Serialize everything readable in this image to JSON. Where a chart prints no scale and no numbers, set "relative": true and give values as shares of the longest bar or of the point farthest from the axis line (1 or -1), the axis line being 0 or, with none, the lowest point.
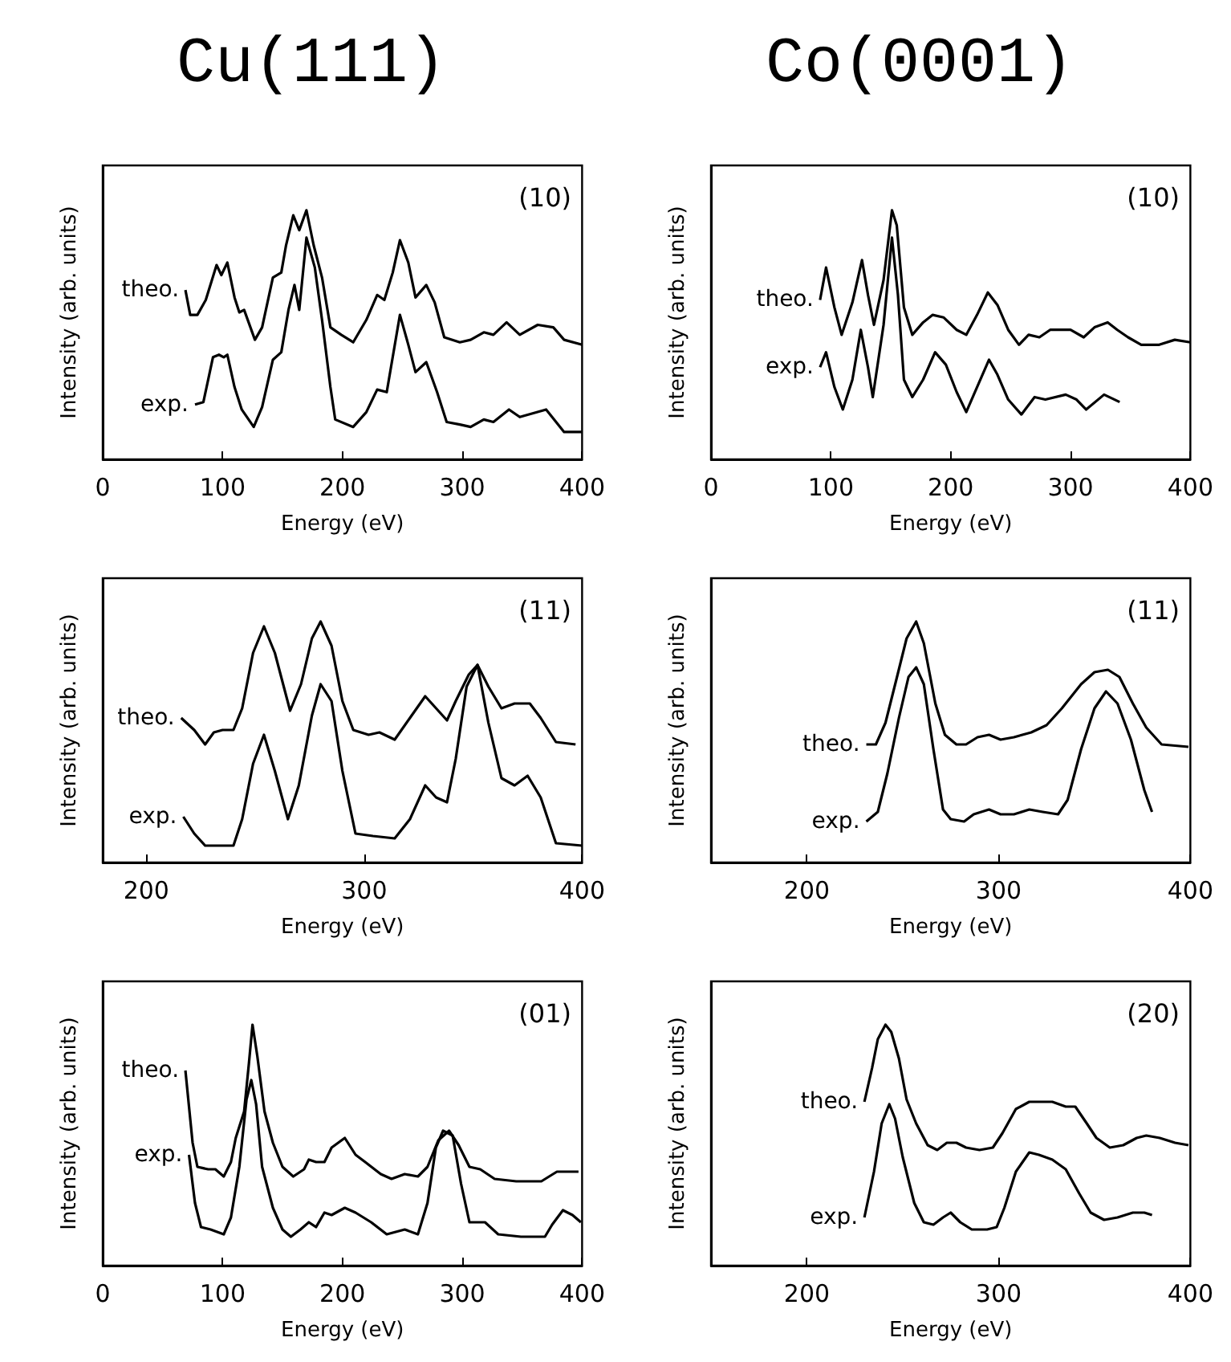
{
  "chart_data": [
    {
      "type": "line",
      "title": "Cu(111)",
      "xlabel": "Energy (eV)",
      "ylabel": "Intensity (arb. units)",
      "annotations": [
        "(10)"
      ],
      "relative": true,
      "xlim": [
        0,
        400
      ],
      "xticks": [
        0,
        100,
        200,
        300,
        400
      ],
      "tick_labels": "x",
      "grid": false,
      "legend": false,
      "marker": "none",
      "series": [
        {
          "name": "theo.",
          "color": "#000000",
          "x": [
            69,
            73,
            79,
            86,
            95,
            99,
            104,
            110,
            114,
            118,
            127,
            133,
            142,
            149,
            153,
            159,
            164,
            170,
            176,
            183,
            190,
            199,
            209,
            220,
            229,
            235,
            242,
            248,
            255,
            261,
            270,
            277,
            285,
            298,
            307,
            318,
            326,
            337,
            348,
            363,
            376,
            385,
            400
          ],
          "values": [
            0.68,
            0.58,
            0.58,
            0.64,
            0.78,
            0.74,
            0.79,
            0.65,
            0.59,
            0.6,
            0.48,
            0.53,
            0.73,
            0.75,
            0.86,
            0.98,
            0.92,
            1.0,
            0.86,
            0.73,
            0.53,
            0.5,
            0.47,
            0.56,
            0.66,
            0.64,
            0.75,
            0.88,
            0.79,
            0.65,
            0.7,
            0.63,
            0.49,
            0.47,
            0.48,
            0.51,
            0.5,
            0.55,
            0.5,
            0.54,
            0.53,
            0.48,
            0.46
          ]
        },
        {
          "name": "exp.",
          "color": "#000000",
          "x": [
            77,
            84,
            92,
            97,
            101,
            104,
            110,
            116,
            126,
            133,
            142,
            149,
            155,
            160,
            164,
            170,
            177,
            183,
            190,
            194,
            209,
            220,
            229,
            237,
            248,
            255,
            261,
            270,
            279,
            287,
            298,
            307,
            318,
            326,
            339,
            348,
            370,
            385,
            400
          ],
          "values": [
            0.22,
            0.23,
            0.41,
            0.42,
            0.41,
            0.42,
            0.29,
            0.2,
            0.13,
            0.21,
            0.4,
            0.43,
            0.6,
            0.7,
            0.6,
            0.89,
            0.77,
            0.56,
            0.29,
            0.16,
            0.13,
            0.19,
            0.28,
            0.27,
            0.58,
            0.46,
            0.35,
            0.39,
            0.27,
            0.15,
            0.14,
            0.13,
            0.16,
            0.15,
            0.2,
            0.17,
            0.2,
            0.11,
            0.11
          ]
        }
      ]
    },
    {
      "type": "line",
      "title": "Co(0001)",
      "xlabel": "Energy (eV)",
      "ylabel": "Intensity (arb. units)",
      "annotations": [
        "(10)"
      ],
      "relative": true,
      "xlim": [
        0,
        400
      ],
      "xticks": [
        0,
        100,
        200,
        300,
        400
      ],
      "tick_labels": "x",
      "grid": false,
      "legend": false,
      "marker": "none",
      "series": [
        {
          "name": "theo.",
          "color": "#000000",
          "x": [
            91,
            96,
            103,
            109,
            118,
            126,
            131,
            136,
            144,
            151,
            155,
            161,
            168,
            177,
            185,
            194,
            205,
            213,
            222,
            231,
            239,
            248,
            257,
            265,
            274,
            283,
            300,
            311,
            320,
            331,
            339,
            348,
            359,
            374,
            387,
            400
          ],
          "values": [
            0.64,
            0.77,
            0.61,
            0.5,
            0.63,
            0.8,
            0.66,
            0.54,
            0.72,
            1.0,
            0.94,
            0.61,
            0.5,
            0.55,
            0.58,
            0.57,
            0.52,
            0.5,
            0.58,
            0.67,
            0.62,
            0.52,
            0.46,
            0.5,
            0.49,
            0.52,
            0.52,
            0.49,
            0.53,
            0.55,
            0.52,
            0.49,
            0.46,
            0.46,
            0.48,
            0.47
          ]
        },
        {
          "name": "exp.",
          "color": "#000000",
          "x": [
            91,
            96,
            103,
            110,
            118,
            125,
            131,
            135,
            144,
            151,
            156,
            161,
            168,
            177,
            187,
            196,
            205,
            213,
            222,
            232,
            239,
            248,
            259,
            270,
            279,
            296,
            305,
            313,
            328,
            341
          ],
          "values": [
            0.37,
            0.43,
            0.29,
            0.2,
            0.32,
            0.52,
            0.37,
            0.25,
            0.54,
            0.89,
            0.66,
            0.32,
            0.25,
            0.32,
            0.43,
            0.38,
            0.27,
            0.19,
            0.29,
            0.4,
            0.34,
            0.24,
            0.18,
            0.25,
            0.24,
            0.26,
            0.24,
            0.2,
            0.26,
            0.23
          ]
        }
      ]
    },
    {
      "type": "line",
      "xlabel": "Energy (eV)",
      "ylabel": "Intensity (arb. units)",
      "annotations": [
        "(11)"
      ],
      "relative": true,
      "xlim": [
        180,
        400
      ],
      "xticks": [
        200,
        300,
        400
      ],
      "tick_labels": "x",
      "grid": false,
      "legend": false,
      "marker": "none",
      "series": [
        {
          "name": "theo.",
          "color": "#000000",
          "x": [
            216,
            222,
            227,
            231,
            235,
            240,
            244,
            249,
            254,
            259,
            266,
            271,
            276,
            280,
            285,
            290,
            295,
            302,
            307,
            314,
            321,
            328,
            333,
            338,
            342,
            348,
            352,
            357,
            363,
            369,
            376,
            381,
            388,
            397
          ],
          "values": [
            0.6,
            0.55,
            0.49,
            0.54,
            0.55,
            0.55,
            0.64,
            0.87,
            0.98,
            0.87,
            0.63,
            0.74,
            0.93,
            1.0,
            0.9,
            0.67,
            0.55,
            0.53,
            0.54,
            0.51,
            0.6,
            0.69,
            0.64,
            0.59,
            0.67,
            0.78,
            0.82,
            0.73,
            0.64,
            0.66,
            0.66,
            0.6,
            0.5,
            0.49
          ]
        },
        {
          "name": "exp.",
          "color": "#000000",
          "x": [
            217,
            222,
            227,
            240,
            244,
            249,
            254,
            259,
            265,
            270,
            276,
            280,
            285,
            290,
            296,
            304,
            314,
            321,
            328,
            333,
            338,
            342,
            347,
            352,
            357,
            363,
            369,
            375,
            381,
            388,
            400
          ],
          "values": [
            0.19,
            0.12,
            0.07,
            0.07,
            0.18,
            0.41,
            0.53,
            0.38,
            0.18,
            0.32,
            0.61,
            0.74,
            0.67,
            0.38,
            0.12,
            0.11,
            0.1,
            0.18,
            0.32,
            0.27,
            0.25,
            0.43,
            0.73,
            0.82,
            0.58,
            0.35,
            0.32,
            0.36,
            0.27,
            0.08,
            0.07
          ]
        }
      ]
    },
    {
      "type": "line",
      "xlabel": "Energy (eV)",
      "ylabel": "Intensity (arb. units)",
      "annotations": [
        "(11)"
      ],
      "relative": true,
      "xlim": [
        150,
        400
      ],
      "xticks": [
        200,
        300,
        400
      ],
      "tick_labels": "x",
      "grid": false,
      "legend": false,
      "marker": "none",
      "series": [
        {
          "name": "theo.",
          "color": "#000000",
          "x": [
            231,
            236,
            241,
            247,
            252,
            257,
            261,
            267,
            272,
            278,
            283,
            289,
            295,
            301,
            308,
            317,
            325,
            333,
            343,
            350,
            357,
            363,
            370,
            377,
            385,
            399
          ],
          "values": [
            0.49,
            0.49,
            0.58,
            0.77,
            0.93,
            1.0,
            0.91,
            0.66,
            0.53,
            0.49,
            0.49,
            0.52,
            0.53,
            0.51,
            0.52,
            0.54,
            0.57,
            0.64,
            0.74,
            0.79,
            0.8,
            0.77,
            0.66,
            0.56,
            0.49,
            0.48
          ]
        },
        {
          "name": "exp.",
          "color": "#000000",
          "x": [
            231,
            237,
            242,
            248,
            253,
            257,
            261,
            266,
            271,
            275,
            282,
            287,
            295,
            301,
            308,
            316,
            323,
            331,
            336,
            343,
            350,
            356,
            362,
            369,
            376,
            380
          ],
          "values": [
            0.17,
            0.21,
            0.37,
            0.6,
            0.77,
            0.81,
            0.74,
            0.47,
            0.22,
            0.18,
            0.17,
            0.2,
            0.22,
            0.2,
            0.2,
            0.22,
            0.21,
            0.2,
            0.26,
            0.47,
            0.64,
            0.71,
            0.66,
            0.51,
            0.3,
            0.21
          ]
        }
      ]
    },
    {
      "type": "line",
      "xlabel": "Energy (eV)",
      "ylabel": "Intensity (arb. units)",
      "annotations": [
        "(01)"
      ],
      "relative": true,
      "xlim": [
        0,
        400
      ],
      "xticks": [
        0,
        100,
        200,
        300,
        400
      ],
      "tick_labels": "x",
      "grid": false,
      "legend": false,
      "marker": "none",
      "series": [
        {
          "name": "theo.",
          "color": "#000000",
          "x": [
            69,
            75,
            79,
            88,
            94,
            101,
            107,
            111,
            118,
            122,
            125,
            129,
            135,
            142,
            150,
            159,
            168,
            172,
            178,
            185,
            191,
            202,
            211,
            219,
            232,
            241,
            252,
            263,
            271,
            280,
            289,
            297,
            306,
            315,
            327,
            345,
            366,
            379,
            397
          ],
          "values": [
            0.81,
            0.51,
            0.41,
            0.4,
            0.4,
            0.37,
            0.43,
            0.53,
            0.64,
            0.84,
            1.0,
            0.87,
            0.64,
            0.51,
            0.41,
            0.37,
            0.4,
            0.44,
            0.43,
            0.43,
            0.49,
            0.53,
            0.46,
            0.43,
            0.38,
            0.36,
            0.38,
            0.37,
            0.41,
            0.52,
            0.56,
            0.5,
            0.41,
            0.4,
            0.36,
            0.35,
            0.35,
            0.39,
            0.39
          ]
        },
        {
          "name": "exp.",
          "color": "#000000",
          "x": [
            72,
            77,
            82,
            90,
            101,
            107,
            114,
            120,
            124,
            128,
            133,
            142,
            150,
            157,
            165,
            172,
            178,
            185,
            191,
            202,
            211,
            224,
            237,
            252,
            263,
            271,
            278,
            284,
            292,
            299,
            306,
            319,
            330,
            349,
            369,
            375,
            384,
            392,
            399
          ],
          "values": [
            0.46,
            0.26,
            0.16,
            0.15,
            0.13,
            0.2,
            0.41,
            0.69,
            0.77,
            0.67,
            0.41,
            0.24,
            0.15,
            0.12,
            0.15,
            0.18,
            0.16,
            0.22,
            0.21,
            0.24,
            0.22,
            0.18,
            0.13,
            0.15,
            0.13,
            0.26,
            0.49,
            0.56,
            0.54,
            0.34,
            0.18,
            0.18,
            0.13,
            0.12,
            0.12,
            0.17,
            0.23,
            0.21,
            0.18
          ]
        }
      ]
    },
    {
      "type": "line",
      "xlabel": "Energy (eV)",
      "ylabel": "Intensity (arb. units)",
      "annotations": [
        "(20)"
      ],
      "relative": true,
      "xlim": [
        150,
        400
      ],
      "xticks": [
        200,
        300,
        400
      ],
      "tick_labels": "x",
      "grid": false,
      "legend": false,
      "marker": "none",
      "series": [
        {
          "name": "theo.",
          "color": "#000000",
          "x": [
            230,
            234,
            237,
            241,
            244,
            248,
            252,
            257,
            263,
            268,
            273,
            278,
            283,
            290,
            297,
            302,
            309,
            316,
            321,
            328,
            335,
            340,
            346,
            351,
            358,
            365,
            372,
            377,
            384,
            392,
            399
          ],
          "values": [
            0.68,
            0.82,
            0.94,
            1.0,
            0.97,
            0.86,
            0.69,
            0.59,
            0.5,
            0.48,
            0.51,
            0.51,
            0.49,
            0.48,
            0.49,
            0.55,
            0.65,
            0.68,
            0.68,
            0.68,
            0.66,
            0.66,
            0.59,
            0.53,
            0.49,
            0.5,
            0.53,
            0.54,
            0.53,
            0.51,
            0.5
          ]
        },
        {
          "name": "exp.",
          "color": "#000000",
          "x": [
            230,
            235,
            239,
            243,
            246,
            250,
            256,
            261,
            266,
            271,
            275,
            280,
            286,
            294,
            299,
            303,
            309,
            316,
            321,
            328,
            335,
            342,
            348,
            355,
            362,
            370,
            376,
            380
          ],
          "values": [
            0.2,
            0.39,
            0.59,
            0.67,
            0.61,
            0.45,
            0.26,
            0.18,
            0.17,
            0.2,
            0.22,
            0.18,
            0.15,
            0.15,
            0.16,
            0.24,
            0.39,
            0.47,
            0.46,
            0.44,
            0.4,
            0.3,
            0.22,
            0.19,
            0.2,
            0.22,
            0.22,
            0.21
          ]
        }
      ]
    }
  ]
}
